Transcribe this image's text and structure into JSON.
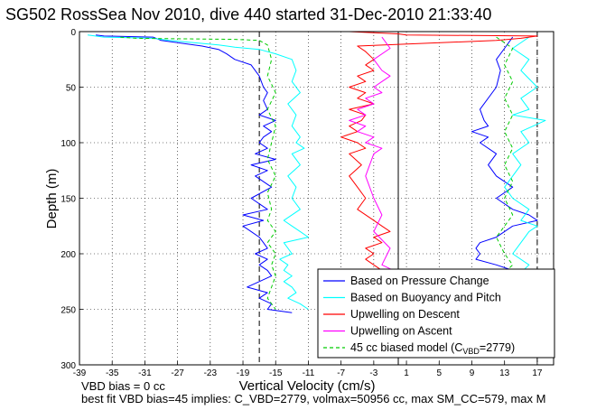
{
  "chart_data": {
    "type": "line",
    "title": "SG502 RossSea Nov 2010, dive 440 started 31-Dec-2010 21:33:40",
    "xlabel": "Vertical Velocity (cm/s)",
    "ylabel": "Depth (m)",
    "xlim": [
      -39,
      19
    ],
    "ylim": [
      300,
      0
    ],
    "y_reversed": true,
    "grid": true,
    "x_ticks": [
      "-39",
      "-35",
      "-31",
      "-27",
      "-23",
      "-19",
      "-15",
      "-11",
      "-7",
      "-3",
      "1",
      "5",
      "9",
      "13",
      "17"
    ],
    "y_ticks": [
      "0",
      "50",
      "100",
      "150",
      "200",
      "250",
      "300"
    ],
    "legend_placement": "bottom-right",
    "reference_lines": [
      {
        "x": -17,
        "style": "dashed",
        "color": "#000000"
      },
      {
        "x": 0,
        "style": "solid",
        "color": "#000000"
      },
      {
        "x": 17,
        "style": "dashed",
        "color": "#000000"
      }
    ],
    "series": [
      {
        "name": "Based on Pressure Change",
        "color": "#0000ff",
        "style": "solid",
        "groups": [
          {
            "x": [
              -37,
              -36,
              -30,
              -29,
              -26,
              -24,
              -22,
              -21,
              -20,
              -18,
              -17,
              -16.5,
              -16,
              -16.5,
              -16,
              -17,
              -15,
              -16.5,
              -15.5,
              -16.5,
              -17,
              -16,
              -17.5,
              -15,
              -18,
              -16,
              -17.5,
              -15.5,
              -18,
              -16,
              -19,
              -16.5,
              -19,
              -18,
              -17,
              -16.5,
              -16,
              -17.5,
              -16,
              -17,
              -16,
              -15.5,
              -17,
              -18.5,
              -16,
              -17,
              -15.5,
              -16,
              -13
            ],
            "y": [
              3,
              4,
              5,
              8,
              11,
              13,
              16,
              20,
              25,
              30,
              40,
              50,
              55,
              62,
              70,
              75,
              80,
              85,
              90,
              95,
              100,
              105,
              110,
              115,
              120,
              125,
              130,
              140,
              150,
              160,
              165,
              170,
              175,
              180,
              185,
              190,
              195,
              200,
              205,
              210,
              215,
              220,
              225,
              230,
              235,
              240,
              245,
              250,
              253
            ]
          },
          {
            "x": [
              14,
              13,
              12,
              12.5,
              12,
              10,
              10.5,
              11,
              9,
              11,
              10,
              12,
              11,
              12,
              14,
              12,
              14,
              16,
              17,
              14,
              13,
              12,
              10,
              9.5,
              10,
              9.5,
              12,
              14,
              13
            ],
            "y": [
              5,
              15,
              25,
              35,
              50,
              70,
              80,
              85,
              90,
              95,
              100,
              110,
              120,
              130,
              140,
              150,
              160,
              165,
              170,
              175,
              180,
              185,
              190,
              195,
              200,
              205,
              210,
              215,
              217
            ]
          }
        ]
      },
      {
        "name": "Based on Buoyancy and Pitch",
        "color": "#00ffff",
        "style": "solid",
        "groups": [
          {
            "x": [
              -38,
              -36,
              -30,
              -28,
              -25,
              -22,
              -20,
              -17,
              -15,
              -13,
              -12.5,
              -13,
              -12,
              -13.5,
              -12.5,
              -13,
              -12,
              -12.5,
              -11.5,
              -13,
              -12,
              -13.5,
              -12.5,
              -13,
              -12,
              -14,
              -13,
              -12,
              -11,
              -14,
              -13,
              -14.5,
              -13.5,
              -14,
              -13,
              -14,
              -13,
              -12.5,
              -13.5,
              -12,
              -11
            ],
            "y": [
              3,
              5,
              6,
              8,
              10,
              12,
              14,
              16,
              20,
              25,
              35,
              45,
              55,
              65,
              75,
              85,
              95,
              100,
              105,
              110,
              120,
              130,
              140,
              150,
              160,
              170,
              175,
              180,
              185,
              190,
              200,
              205,
              210,
              215,
              220,
              225,
              230,
              235,
              240,
              245,
              250
            ]
          },
          {
            "x": [
              16,
              14,
              16,
              15,
              17,
              15,
              16,
              14,
              18,
              15,
              16,
              14,
              15,
              13,
              14,
              16,
              15,
              17,
              16,
              15,
              14,
              16,
              15
            ],
            "y": [
              5,
              15,
              25,
              35,
              50,
              60,
              70,
              75,
              80,
              90,
              100,
              110,
              120,
              140,
              150,
              160,
              170,
              175,
              180,
              190,
              200,
              210,
              217
            ]
          }
        ]
      },
      {
        "name": "Upwelling on Descent",
        "color": "#ff0000",
        "style": "solid",
        "groups": [
          {
            "x": [
              -6,
              -3,
              0,
              1,
              17,
              15,
              12,
              -5,
              -4,
              -3,
              -4,
              -3,
              -5,
              -4,
              -6,
              -4,
              -5,
              -3,
              -6,
              -4,
              -4.5,
              -6,
              -5,
              -7,
              -5,
              -4,
              -6,
              -4.5,
              -6,
              -5,
              -4,
              -5,
              -3,
              -2,
              -1,
              -3,
              -2,
              -4,
              -3,
              -4,
              -3,
              -2,
              -1
            ],
            "y": [
              0,
              1,
              2,
              3,
              4,
              6,
              8,
              13,
              18,
              25,
              30,
              35,
              40,
              45,
              50,
              55,
              60,
              65,
              70,
              75,
              80,
              85,
              90,
              95,
              100,
              105,
              110,
              120,
              130,
              140,
              150,
              160,
              170,
              175,
              180,
              185,
              190,
              195,
              200,
              205,
              210,
              215,
              217
            ]
          }
        ]
      },
      {
        "name": "Upwelling on Ascent",
        "color": "#ff00ff",
        "style": "solid",
        "groups": [
          {
            "x": [
              -2,
              -1,
              -3,
              -2,
              -1,
              -2,
              -3,
              -2,
              -4,
              -3,
              -5,
              -4,
              -6,
              -4,
              -5,
              -3,
              -4,
              -2,
              -3,
              -4,
              -3,
              -2,
              -3,
              -1,
              -2,
              0
            ],
            "y": [
              5,
              15,
              25,
              35,
              40,
              45,
              50,
              55,
              60,
              65,
              70,
              75,
              80,
              85,
              90,
              95,
              100,
              105,
              110,
              130,
              150,
              165,
              180,
              195,
              210,
              217
            ]
          }
        ]
      },
      {
        "name": "45 cc biased model (C_VBD=2779)",
        "color": "#00cc00",
        "style": "dashed",
        "groups": [
          {
            "x": [
              -34,
              -32,
              -20,
              -17,
              -16,
              -15.5,
              -16,
              -15,
              -16,
              -15,
              -15.5,
              -16,
              -15,
              -16,
              -15.5,
              -16,
              -15,
              -16,
              -15,
              -15.5,
              -15,
              -16,
              -15
            ],
            "y": [
              5,
              6,
              7,
              8,
              12,
              25,
              40,
              55,
              70,
              85,
              100,
              115,
              130,
              145,
              160,
              170,
              180,
              190,
              200,
              210,
              220,
              240,
              250
            ]
          },
          {
            "x": [
              12,
              14,
              13,
              14,
              13,
              14,
              13,
              14,
              13,
              14,
              13,
              14,
              13,
              12,
              13,
              14,
              13
            ],
            "y": [
              5,
              15,
              30,
              45,
              60,
              75,
              90,
              105,
              120,
              135,
              150,
              165,
              175,
              185,
              200,
              210,
              217
            ]
          }
        ]
      }
    ]
  },
  "legend": {
    "entries": [
      {
        "label": "Based on Pressure Change",
        "color": "#0000ff",
        "dashed": false
      },
      {
        "label": "Based on Buoyancy and Pitch",
        "color": "#00ffff",
        "dashed": false
      },
      {
        "label": "Upwelling on Descent",
        "color": "#ff0000",
        "dashed": false
      },
      {
        "label": "Upwelling on Ascent",
        "color": "#ff00ff",
        "dashed": false
      },
      {
        "label": "45 cc biased model (C",
        "label_sub": "VBD",
        "label_post": "=2779)",
        "color": "#00cc00",
        "dashed": true
      }
    ]
  },
  "footer": {
    "line1": "VBD bias = 0 cc",
    "line2": "best fit VBD bias=45 implies: C_VBD=2779, volmax=50956 cc, max SM_CC=579, max M"
  }
}
